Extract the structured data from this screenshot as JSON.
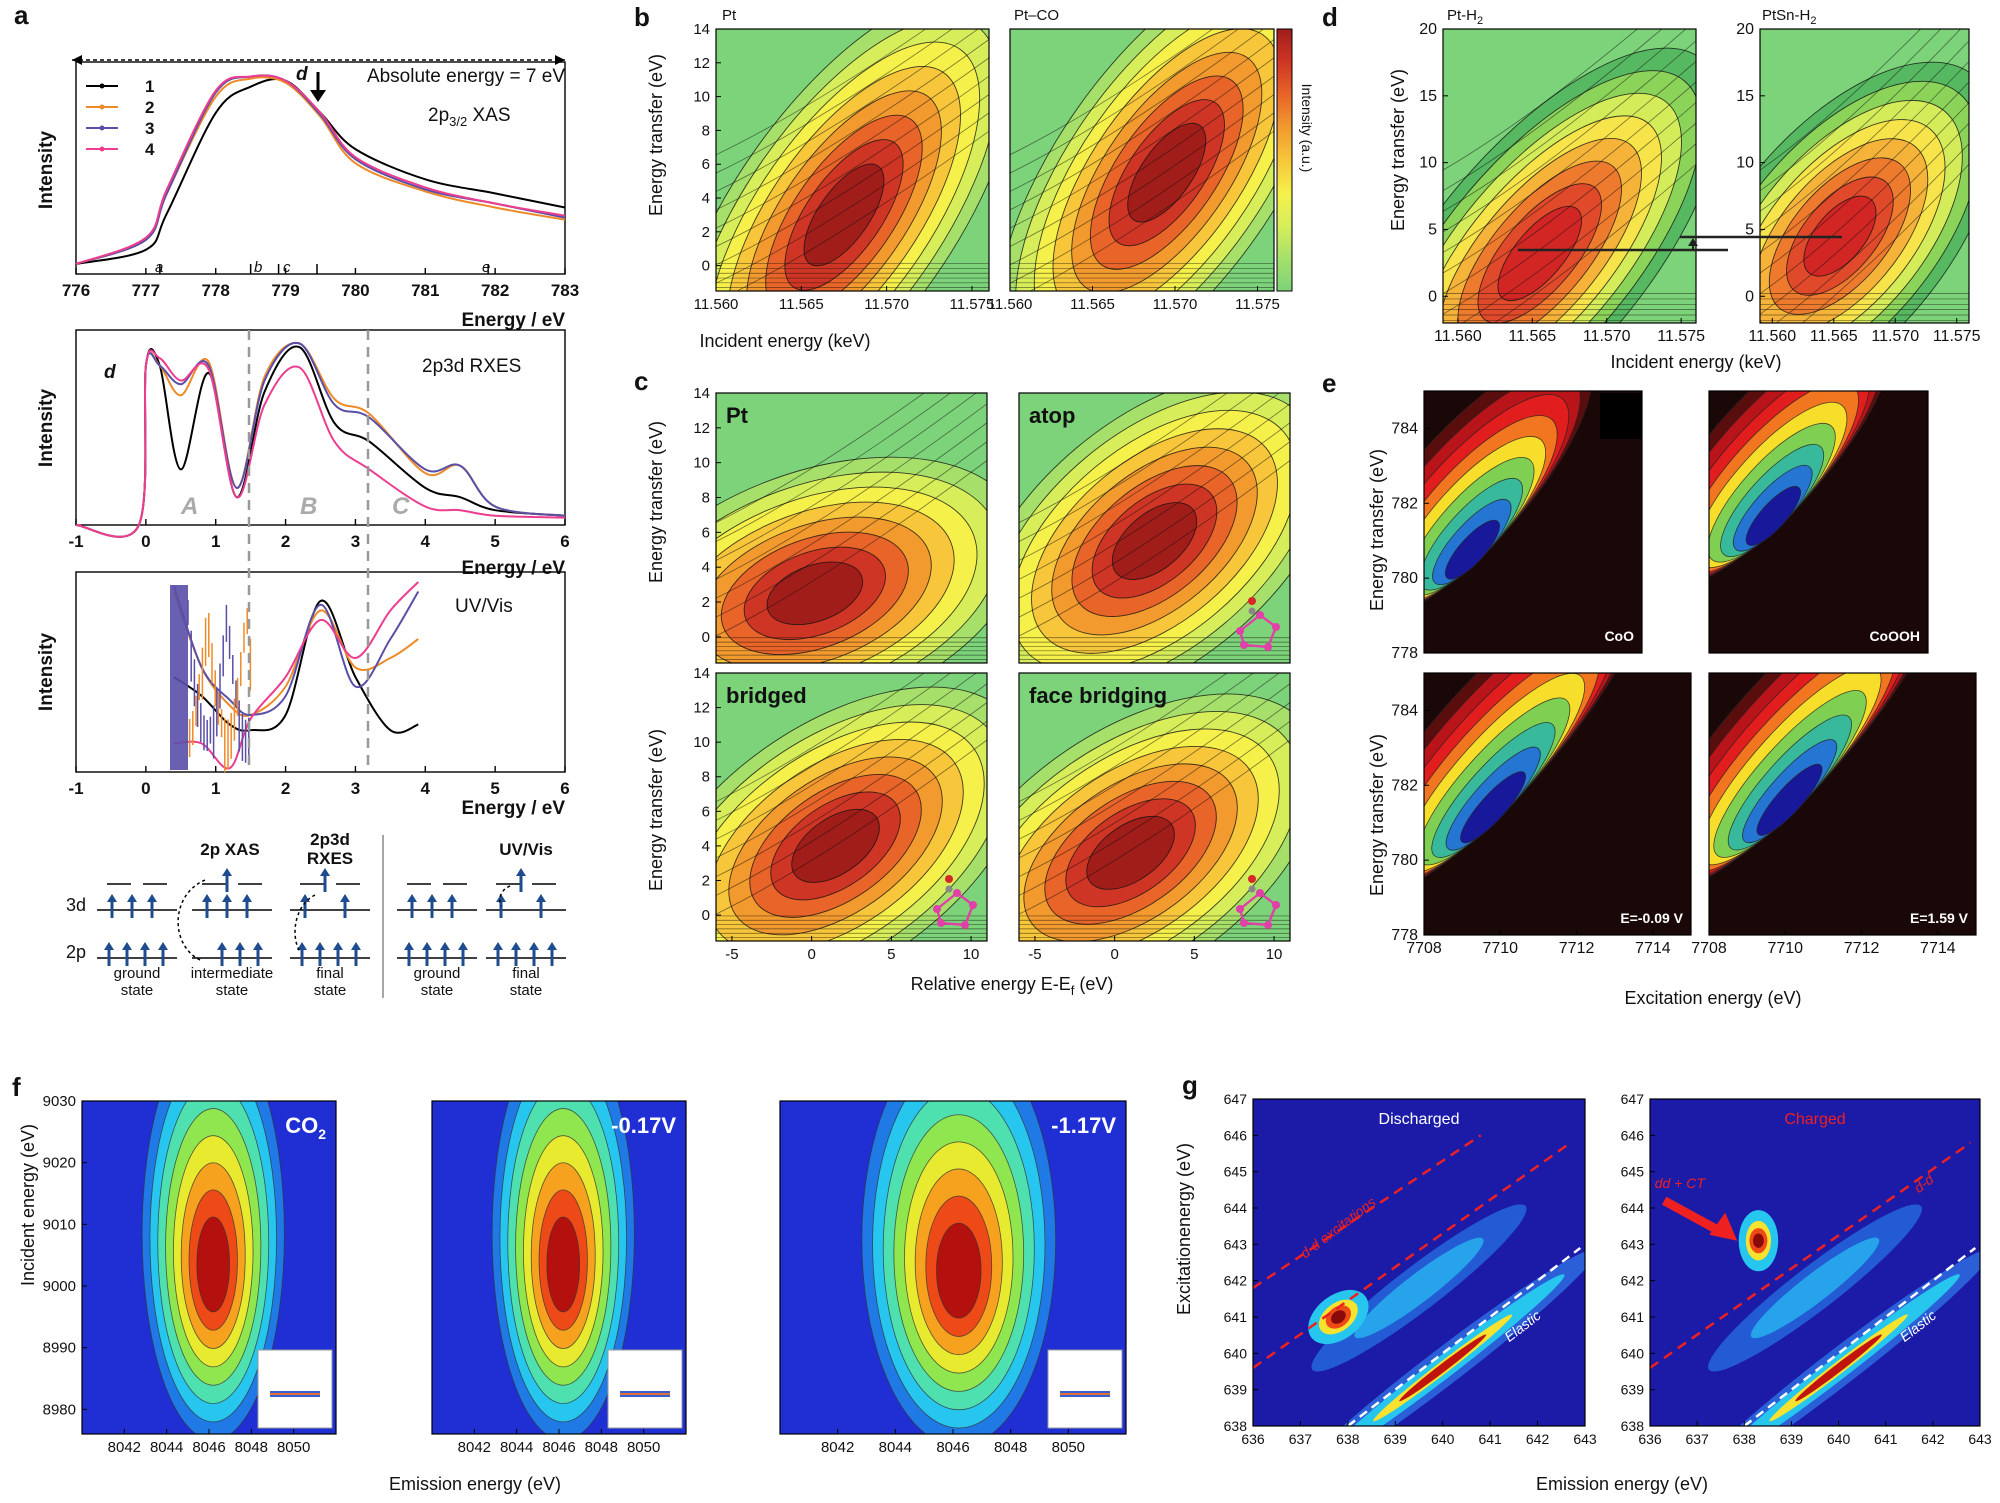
{
  "colors": {
    "heat": [
      "#7dd37a",
      "#a6e06a",
      "#d7ee5a",
      "#f6f04a",
      "#f7c63a",
      "#f29a2e",
      "#e86428",
      "#cf3524",
      "#a11d1a"
    ],
    "jet": [
      "#1f2fd4",
      "#1f7ae6",
      "#27c6ef",
      "#4fe0b0",
      "#8fe64f",
      "#e7ea2f",
      "#f6a21f",
      "#ee4a17",
      "#b3100e"
    ],
    "eheat": [
      "#1a0808",
      "#5a0d0d",
      "#b8141a",
      "#e11d1d",
      "#f1761f",
      "#f7de2b",
      "#7fd052",
      "#39b99c",
      "#2576d2",
      "#17189a"
    ],
    "xas1": "#000000",
    "xas2": "#ee8a28",
    "xas3": "#5a4fa8",
    "xas4": "#ec3d8f"
  },
  "panels": {
    "a": {
      "label": "a",
      "top": {
        "annotation": "Absolute energy = 7 eV",
        "title": "2p3/2 XAS",
        "title_main": "2p",
        "title_sub": "3/2",
        "title_rest": " XAS",
        "xlabel": "Energy / eV",
        "ylabel": "Intensity",
        "xticks": [
          "776",
          "777",
          "778",
          "779",
          "780",
          "781",
          "782",
          "783"
        ],
        "marks": [
          "a",
          "b",
          "c",
          "d",
          "e"
        ],
        "legend": [
          "1",
          "2",
          "3",
          "4"
        ]
      },
      "mid": {
        "title": "2p3d RXES",
        "xlabel": "Energy / eV",
        "ylabel": "Intensity",
        "mark": "d",
        "xticks": [
          "-1",
          "0",
          "1",
          "2",
          "3",
          "4",
          "5",
          "6"
        ],
        "regions": [
          "A",
          "B",
          "C"
        ]
      },
      "bot": {
        "title": "UV/Vis",
        "xlabel": "Energy / eV",
        "ylabel": "Intensity",
        "xticks": [
          "-1",
          "0",
          "1",
          "2",
          "3",
          "4",
          "5",
          "6"
        ]
      },
      "scheme": {
        "h_3d": "3d",
        "h_2p": "2p",
        "t1": "2p XAS",
        "t2a": "2p3d",
        "t2b": "RXES",
        "t3": "UV/Vis",
        "g1": "ground",
        "g1b": "state",
        "i1": "intermediate",
        "i1b": "state",
        "f1": "final",
        "f1b": "state",
        "g2": "ground",
        "g2b": "state",
        "f2": "final",
        "f2b": "state"
      }
    },
    "b": {
      "label": "b",
      "sub": [
        "Pt",
        "Pt–CO"
      ],
      "ylabel": "Energy transfer (eV)",
      "xlabel": "Incident energy (keV)",
      "yticks": [
        "0",
        "2",
        "4",
        "6",
        "8",
        "10",
        "12",
        "14"
      ],
      "xticks": [
        "11.560",
        "11.565",
        "11.570",
        "11.575"
      ],
      "cbar": "Intensity (a.u.)"
    },
    "c": {
      "label": "c",
      "sub": [
        "Pt",
        "atop",
        "bridged",
        "face bridging"
      ],
      "ylabel": "Energy transfer (eV)",
      "xlabel": "Relative energy E-E",
      "xlabel_sub": "f",
      "xlabel_end": " (eV)",
      "yticks": [
        "0",
        "2",
        "4",
        "6",
        "8",
        "10",
        "12",
        "14"
      ],
      "xticks": [
        "-5",
        "0",
        "5",
        "10"
      ]
    },
    "d": {
      "label": "d",
      "sub": [
        "Pt-H2",
        "PtSn-H2"
      ],
      "sub_main": [
        "Pt-H",
        "PtSn-H"
      ],
      "ylabel": "Energy transfer (eV)",
      "xlabel": "Incident energy (keV)",
      "yticks": [
        "0",
        "5",
        "10",
        "15",
        "20"
      ],
      "xticks": [
        "11.560",
        "11.565",
        "11.570",
        "11.575"
      ]
    },
    "e": {
      "label": "e",
      "sub": [
        "CoO",
        "CoOOH",
        "E=-0.09 V",
        "E=1.59 V"
      ],
      "ylabel": "Energy transfer (eV)",
      "xlabel": "Excitation energy (eV)",
      "yticks": [
        "778",
        "780",
        "782",
        "784"
      ],
      "xticks": [
        "7708",
        "7710",
        "7712",
        "7714"
      ]
    },
    "f": {
      "label": "f",
      "sub": [
        "CO2",
        "-0.17V",
        "-1.17V"
      ],
      "sub_co": "CO",
      "sub_co_sub": "2",
      "ylabel": "Incident energy (eV)",
      "xlabel": "Emission energy (eV)",
      "yticks": [
        "8980",
        "8990",
        "9000",
        "9010",
        "9020",
        "9030"
      ],
      "xticks": [
        "8042",
        "8044",
        "8046",
        "8048",
        "8050"
      ]
    },
    "g": {
      "label": "g",
      "sub": [
        "Discharged",
        "Charged"
      ],
      "ylabel": "Excitationenergy (eV)",
      "xlabel": "Emission energy (eV)",
      "yticks": [
        "638",
        "639",
        "640",
        "641",
        "642",
        "643",
        "644",
        "645",
        "646",
        "647"
      ],
      "xticks": [
        "636",
        "637",
        "638",
        "639",
        "640",
        "641",
        "642",
        "643"
      ],
      "ann_dd_exc": "d-d excitations",
      "ann_dd": "d-d",
      "ann_ddct": "dd + CT",
      "ann_elastic": "Elastic"
    }
  },
  "chart_data": [
    {
      "type": "line",
      "panel": "a-top",
      "title": "2p3/2 XAS",
      "xlabel": "Energy / eV",
      "ylabel": "Intensity",
      "xlim": [
        776,
        783
      ],
      "series": [
        {
          "name": "1",
          "x": [
            776,
            777,
            777.3,
            778,
            778.5,
            779,
            779.5,
            780,
            781,
            782,
            783
          ],
          "values": [
            0.05,
            0.12,
            0.3,
            0.8,
            0.93,
            0.96,
            0.8,
            0.62,
            0.47,
            0.4,
            0.33
          ]
        },
        {
          "name": "2",
          "x": [
            776,
            777,
            777.3,
            778,
            778.5,
            779,
            779.5,
            780,
            781,
            782,
            783
          ],
          "values": [
            0.05,
            0.17,
            0.4,
            0.88,
            0.97,
            0.95,
            0.78,
            0.55,
            0.41,
            0.33,
            0.27
          ]
        },
        {
          "name": "3",
          "x": [
            776,
            777,
            777.3,
            778,
            778.5,
            779,
            779.5,
            780,
            781,
            782,
            783
          ],
          "values": [
            0.05,
            0.17,
            0.4,
            0.9,
            0.98,
            0.96,
            0.79,
            0.57,
            0.42,
            0.35,
            0.28
          ]
        },
        {
          "name": "4",
          "x": [
            776,
            777,
            777.3,
            778,
            778.5,
            779,
            779.5,
            780,
            781,
            782,
            783
          ],
          "values": [
            0.05,
            0.18,
            0.42,
            0.91,
            0.98,
            0.96,
            0.8,
            0.58,
            0.43,
            0.35,
            0.29
          ]
        }
      ]
    },
    {
      "type": "line",
      "panel": "a-mid",
      "title": "2p3d RXES",
      "xlim": [
        -1,
        6
      ],
      "series": [
        {
          "name": "1",
          "x": [
            -1,
            -0.1,
            0,
            0.2,
            0.5,
            0.9,
            1.3,
            1.7,
            2.2,
            2.7,
            3.2,
            4,
            4.5,
            5,
            6
          ],
          "values": [
            0,
            0,
            0.86,
            0.86,
            0.3,
            0.82,
            0.15,
            0.72,
            0.96,
            0.55,
            0.45,
            0.2,
            0.15,
            0.08,
            0.05
          ]
        },
        {
          "name": "2",
          "x": [
            -1,
            -0.1,
            0,
            0.2,
            0.5,
            0.9,
            1.3,
            1.7,
            2.2,
            2.7,
            3.2,
            4,
            4.5,
            5,
            6
          ],
          "values": [
            0,
            0,
            0.86,
            0.86,
            0.7,
            0.88,
            0.2,
            0.8,
            0.98,
            0.68,
            0.6,
            0.28,
            0.32,
            0.1,
            0.05
          ]
        },
        {
          "name": "3",
          "x": [
            -1,
            -0.1,
            0,
            0.2,
            0.5,
            0.9,
            1.3,
            1.7,
            2.2,
            2.7,
            3.2,
            4,
            4.5,
            5,
            6
          ],
          "values": [
            0,
            0,
            0.86,
            0.86,
            0.76,
            0.86,
            0.2,
            0.78,
            0.98,
            0.65,
            0.58,
            0.3,
            0.32,
            0.1,
            0.05
          ]
        },
        {
          "name": "4",
          "x": [
            -1,
            -0.1,
            0,
            0.2,
            0.5,
            0.9,
            1.3,
            1.7,
            2.2,
            2.7,
            3.2,
            4,
            4.5,
            5,
            6
          ],
          "values": [
            0,
            0,
            0.86,
            0.9,
            0.78,
            0.84,
            0.15,
            0.65,
            0.85,
            0.45,
            0.3,
            0.1,
            0.08,
            0.05,
            0.04
          ]
        }
      ]
    },
    {
      "type": "line",
      "panel": "a-bot",
      "title": "UV/Vis",
      "xlim": [
        -1,
        6
      ],
      "series": [
        {
          "name": "1",
          "x": [
            0.4,
            0.8,
            1.2,
            1.5,
            2,
            2.5,
            3,
            3.5,
            3.9
          ],
          "values": [
            0.5,
            0.4,
            0.25,
            0.22,
            0.3,
            0.9,
            0.5,
            0.22,
            0.25
          ]
        },
        {
          "name": "2",
          "x": [
            0.4,
            0.8,
            1.2,
            1.5,
            2,
            2.5,
            3,
            3.5,
            3.9
          ],
          "values": [
            0.95,
            0.55,
            0.35,
            0.3,
            0.45,
            0.85,
            0.55,
            0.6,
            0.7
          ]
        },
        {
          "name": "3",
          "x": [
            0.4,
            0.8,
            1.2,
            1.5,
            2,
            2.5,
            3,
            3.5,
            3.9
          ],
          "values": [
            0.98,
            0.55,
            0.38,
            0.3,
            0.4,
            0.88,
            0.45,
            0.7,
            0.95
          ]
        },
        {
          "name": "4",
          "x": [
            0.4,
            0.8,
            1.2,
            1.5,
            2,
            2.5,
            3,
            3.5,
            3.9
          ],
          "values": [
            0.15,
            0.15,
            0.02,
            0.28,
            0.5,
            0.8,
            0.6,
            0.85,
            1.0
          ]
        }
      ]
    },
    {
      "type": "heatmap",
      "panel": "b",
      "subplots": [
        "Pt",
        "Pt–CO"
      ],
      "xlim": [
        11.56,
        11.576
      ],
      "ylim": [
        -1.5,
        14
      ],
      "peaks": [
        {
          "x": 11.5675,
          "y": 3
        },
        {
          "x": 11.5695,
          "y": 5.5
        }
      ]
    },
    {
      "type": "heatmap",
      "panel": "c",
      "subplots": [
        "Pt",
        "atop",
        "bridged",
        "face bridging"
      ],
      "xlim": [
        -6,
        11
      ],
      "ylim": [
        -1.5,
        14
      ],
      "peaks": [
        {
          "x": 0.2,
          "y": 2.5
        },
        {
          "x": 2.5,
          "y": 5.5
        },
        {
          "x": 1.5,
          "y": 4
        },
        {
          "x": 1,
          "y": 3.6
        }
      ]
    },
    {
      "type": "heatmap",
      "panel": "d",
      "subplots": [
        "Pt-H2",
        "PtSn-H2"
      ],
      "xlim": [
        11.559,
        11.576
      ],
      "ylim": [
        -2,
        20
      ],
      "peaks": [
        {
          "x": 11.5655,
          "y": 3.2
        },
        {
          "x": 11.5655,
          "y": 4.5
        }
      ]
    },
    {
      "type": "heatmap",
      "panel": "e",
      "subplots": [
        "CoO",
        "CoOOH",
        "E=-0.09 V",
        "E=1.59 V"
      ],
      "xlim": [
        7708,
        7715
      ],
      "ylim": [
        778,
        785
      ],
      "peaks": [
        {
          "x": 7709.6,
          "y": 780.3
        },
        {
          "x": 7710.1,
          "y": 781.2
        },
        {
          "x": 7709.8,
          "y": 780.9
        },
        {
          "x": 7710.1,
          "y": 781.1
        }
      ]
    },
    {
      "type": "heatmap",
      "panel": "f",
      "subplots": [
        "CO2",
        "-0.17V",
        "-1.17V"
      ],
      "xlim": [
        8040,
        8052
      ],
      "ylim": [
        8976,
        9030
      ],
      "peaks": [
        {
          "x": 8046.2,
          "y": 9002
        },
        {
          "x": 8046.2,
          "y": 9002
        },
        {
          "x": 8046.2,
          "y": 9001
        }
      ]
    },
    {
      "type": "heatmap",
      "panel": "g",
      "subplots": [
        "Discharged",
        "Charged"
      ],
      "xlim": [
        636,
        643
      ],
      "ylim": [
        638,
        647
      ],
      "peaks": [
        {
          "x": 637.8,
          "y": 641
        },
        {
          "x": 638.3,
          "y": 643.1
        }
      ],
      "elastic_line": "y = x"
    }
  ]
}
